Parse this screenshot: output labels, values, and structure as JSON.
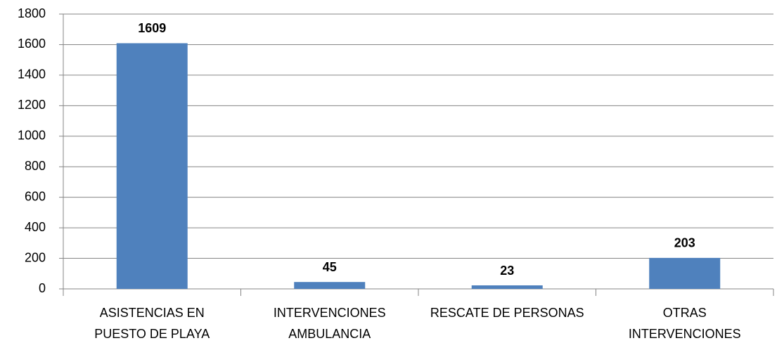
{
  "chart_data": {
    "type": "bar",
    "categories": [
      "ASISTENCIAS EN PUESTO DE PLAYA",
      "INTERVENCIONES AMBULANCIA",
      "RESCATE DE PERSONAS",
      "OTRAS INTERVENCIONES"
    ],
    "values": [
      1609,
      45,
      23,
      203
    ],
    "color": "#4f81bd",
    "ylim": [
      0,
      1800
    ],
    "yticks": [
      0,
      200,
      400,
      600,
      800,
      1000,
      1200,
      1400,
      1600,
      1800
    ],
    "grid": true
  }
}
